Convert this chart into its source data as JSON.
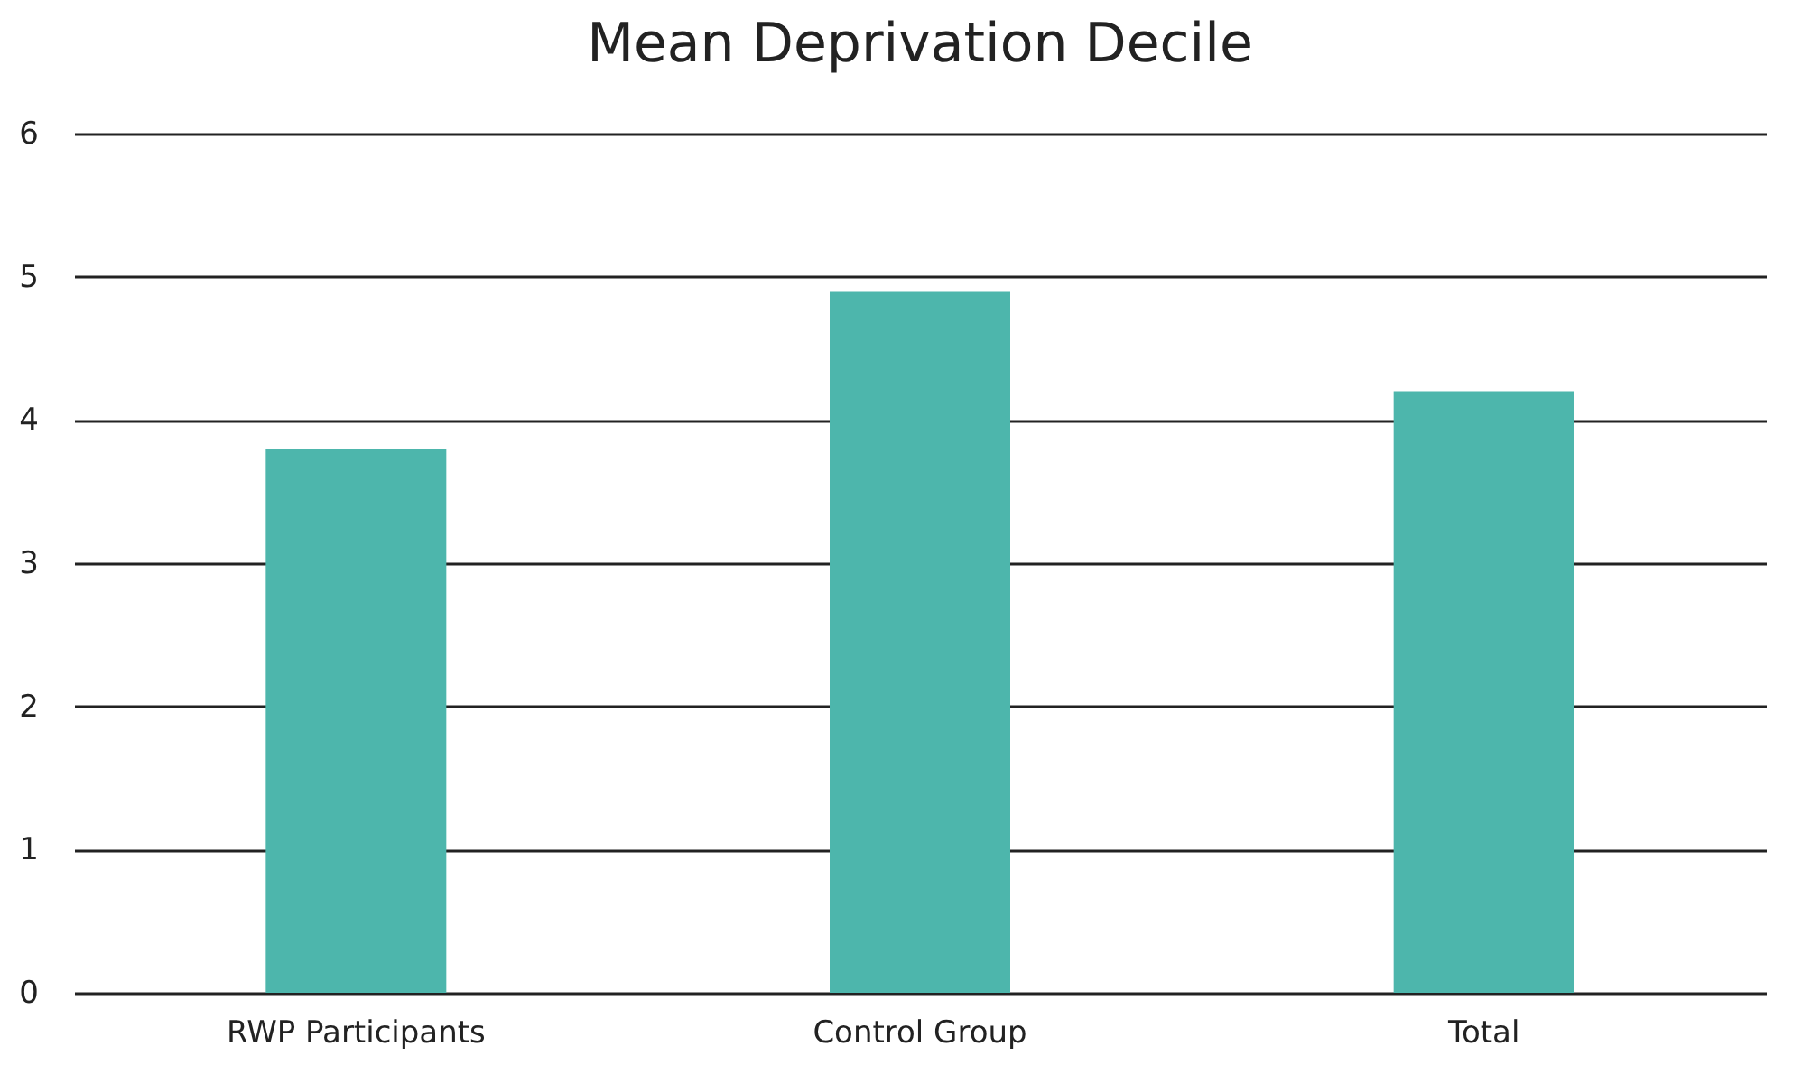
{
  "chart_data": {
    "type": "bar",
    "title": "Mean Deprivation Decile",
    "categories": [
      "RWP Participants",
      "Control Group",
      "Total"
    ],
    "values": [
      3.8,
      4.9,
      4.2
    ],
    "color": "#4db6ac",
    "ylim": [
      0,
      6
    ],
    "yticks": [
      0,
      1,
      2,
      3,
      4,
      5,
      6
    ],
    "grid": "y"
  }
}
